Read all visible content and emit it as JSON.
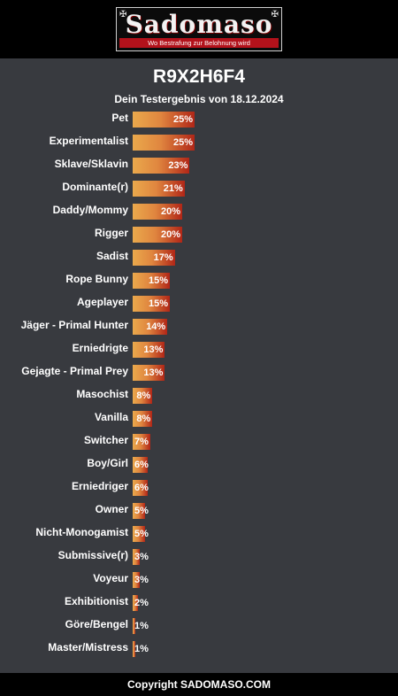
{
  "header": {
    "logo_text": "Sadomaso",
    "logo_tagline": "Wo Bestrafung zur Belohnung wird"
  },
  "result_code": "R9X2H6F4",
  "subtitle": "Dein Testergebnis von 18.12.2024",
  "footer_text": "Copyright SADOMASO.COM",
  "colors": {
    "bar_start": "#eaa94c",
    "bar_end": "#b12617",
    "background": "#383a3f"
  },
  "chart_data": {
    "type": "bar",
    "orientation": "horizontal",
    "title": "",
    "xlabel": "",
    "ylabel": "",
    "xlim": [
      0,
      100
    ],
    "categories": [
      "Pet",
      "Experimentalist",
      "Sklave/Sklavin",
      "Dominante(r)",
      "Daddy/Mommy",
      "Rigger",
      "Sadist",
      "Rope Bunny",
      "Ageplayer",
      "Jäger - Primal Hunter",
      "Erniedrigte",
      "Gejagte - Primal Prey",
      "Masochist",
      "Vanilla",
      "Switcher",
      "Boy/Girl",
      "Erniedriger",
      "Owner",
      "Nicht-Monogamist",
      "Submissive(r)",
      "Voyeur",
      "Exhibitionist",
      "Göre/Bengel",
      "Master/Mistress"
    ],
    "values": [
      25,
      25,
      23,
      21,
      20,
      20,
      17,
      15,
      15,
      14,
      13,
      13,
      8,
      8,
      7,
      6,
      6,
      5,
      5,
      3,
      3,
      2,
      1,
      1
    ],
    "value_labels": [
      "25%",
      "25%",
      "23%",
      "21%",
      "20%",
      "20%",
      "17%",
      "15%",
      "15%",
      "14%",
      "13%",
      "13%",
      "8%",
      "8%",
      "7%",
      "6%",
      "6%",
      "5%",
      "5%",
      "3%",
      "3%",
      "2%",
      "1%",
      "1%"
    ]
  }
}
